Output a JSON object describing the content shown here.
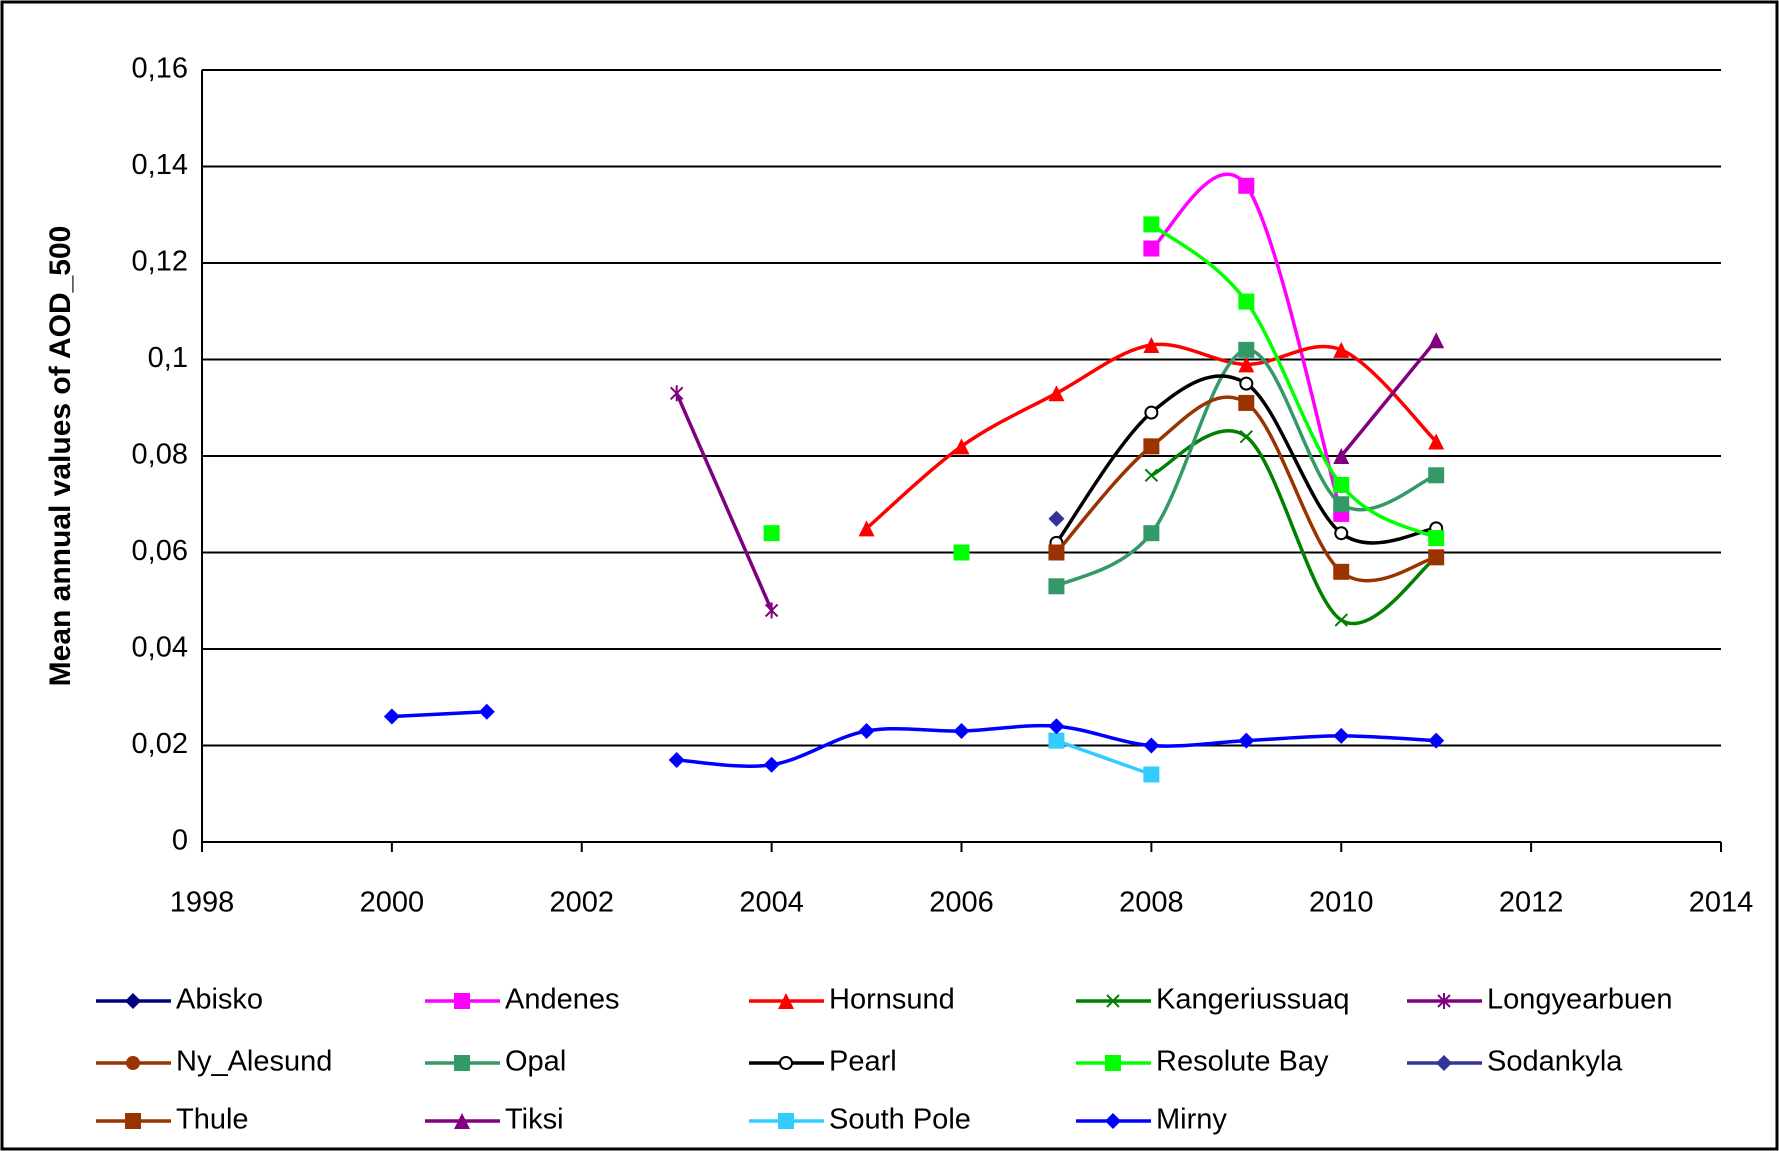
{
  "chart_data": {
    "type": "line",
    "y_label": "Mean annual values of AOD_500",
    "x": [
      2000,
      2001,
      2002,
      2003,
      2004,
      2005,
      2006,
      2007,
      2008,
      2009,
      2010,
      2011
    ],
    "xlim": [
      1998,
      2014
    ],
    "xticks": [
      1998,
      2000,
      2002,
      2004,
      2006,
      2008,
      2010,
      2012,
      2014
    ],
    "ylim": [
      0,
      0.16
    ],
    "yticks": [
      0,
      {
        "value": 0.02,
        "label": "0,02"
      },
      {
        "value": 0.04,
        "label": "0,04"
      },
      {
        "value": 0.06,
        "label": "0,06"
      },
      {
        "value": 0.08,
        "label": "0,08"
      },
      {
        "value": 0.1,
        "label": "0,1"
      },
      {
        "value": 0.12,
        "label": "0,12"
      },
      {
        "value": 0.14,
        "label": "0,14"
      },
      {
        "value": 0.16,
        "label": "0,16"
      }
    ],
    "grid": true,
    "smooth": true,
    "series": [
      {
        "name": "Abisko",
        "color": "#000080",
        "marker": "diamond",
        "values": [
          null,
          null,
          null,
          null,
          null,
          null,
          null,
          null,
          null,
          null,
          null,
          null
        ]
      },
      {
        "name": "Andenes",
        "color": "#ff00ff",
        "marker": "square",
        "values": [
          null,
          null,
          null,
          null,
          null,
          null,
          null,
          null,
          0.123,
          0.136,
          0.068,
          null
        ]
      },
      {
        "name": "Hornsund",
        "color": "#ff0000",
        "marker": "triangle",
        "values": [
          null,
          null,
          null,
          null,
          null,
          0.065,
          0.082,
          0.093,
          0.103,
          0.099,
          0.102,
          0.083
        ]
      },
      {
        "name": "Kangeriussuaq",
        "color": "#008000",
        "marker": "x",
        "values": [
          null,
          null,
          null,
          null,
          null,
          null,
          null,
          null,
          0.076,
          0.084,
          0.046,
          0.059
        ]
      },
      {
        "name": "Longyearbuen",
        "color": "#800080",
        "marker": "star",
        "values": [
          null,
          null,
          null,
          0.093,
          0.048,
          null,
          null,
          null,
          null,
          null,
          null,
          null
        ]
      },
      {
        "name": "Ny_Alesund",
        "color": "#993300",
        "marker": "circle",
        "values": [
          null,
          null,
          null,
          null,
          null,
          null,
          null,
          null,
          null,
          null,
          null,
          null
        ]
      },
      {
        "name": "Opal",
        "color": "#339966",
        "marker": "square",
        "values": [
          null,
          null,
          null,
          null,
          null,
          null,
          null,
          0.053,
          0.064,
          0.102,
          0.07,
          0.076
        ]
      },
      {
        "name": "Pearl",
        "color": "#000000",
        "marker": "hollow-circle",
        "values": [
          null,
          null,
          null,
          null,
          null,
          null,
          null,
          0.062,
          0.089,
          0.095,
          0.064,
          0.065
        ]
      },
      {
        "name": "Resolute Bay",
        "color": "#00ff00",
        "marker": "square",
        "values": [
          null,
          null,
          null,
          null,
          0.064,
          null,
          0.06,
          null,
          0.128,
          0.112,
          0.074,
          0.063
        ]
      },
      {
        "name": "Sodankyla",
        "color": "#333399",
        "marker": "diamond",
        "values": [
          null,
          null,
          null,
          null,
          null,
          null,
          null,
          0.067,
          null,
          null,
          null,
          null
        ]
      },
      {
        "name": "Thule",
        "color": "#993300",
        "marker": "square",
        "values": [
          null,
          null,
          null,
          null,
          null,
          null,
          null,
          0.06,
          0.082,
          0.091,
          0.056,
          0.059
        ]
      },
      {
        "name": "Tiksi",
        "color": "#800080",
        "marker": "triangle",
        "values": [
          null,
          null,
          null,
          null,
          null,
          null,
          null,
          null,
          null,
          null,
          0.08,
          0.104
        ]
      },
      {
        "name": "South Pole",
        "color": "#33ccff",
        "marker": "square",
        "values": [
          null,
          null,
          null,
          null,
          null,
          null,
          null,
          0.021,
          0.014,
          null,
          null,
          null
        ]
      },
      {
        "name": "Mirny",
        "color": "#0000ff",
        "marker": "diamond",
        "values": [
          0.026,
          0.027,
          null,
          0.017,
          0.016,
          0.023,
          0.023,
          0.024,
          0.02,
          0.021,
          0.022,
          0.021
        ]
      }
    ]
  }
}
